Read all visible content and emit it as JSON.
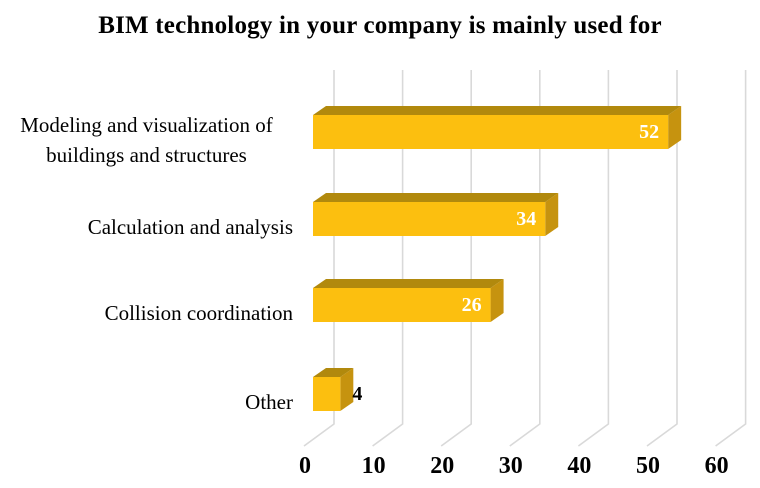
{
  "chart_data": {
    "type": "bar",
    "orientation": "horizontal",
    "style": "3d",
    "title": "BIM technology in your company is mainly used for",
    "categories": [
      "Modeling and visualization of buildings and structures",
      "Calculation and analysis",
      "Collision coordination",
      "Other"
    ],
    "values": [
      52,
      34,
      26,
      4
    ],
    "data_labels": [
      {
        "text": "52",
        "color": "#FFFFFF",
        "inside": true
      },
      {
        "text": "34",
        "color": "#FFFFFF",
        "inside": true
      },
      {
        "text": "26",
        "color": "#FFFFFF",
        "inside": true
      },
      {
        "text": "4",
        "color": "#000000",
        "inside": false
      }
    ],
    "xticks": [
      "0",
      "10",
      "20",
      "30",
      "40",
      "50",
      "60"
    ],
    "xlim": [
      0,
      60
    ],
    "grid": true,
    "legend": "none",
    "colors": {
      "bar_face": "#FCBF0F",
      "bar_top": "#B1890D",
      "bar_side": "#C6930F",
      "gridline": "#D9D9D9",
      "text": "#000000",
      "background": "#FFFFFF"
    }
  }
}
